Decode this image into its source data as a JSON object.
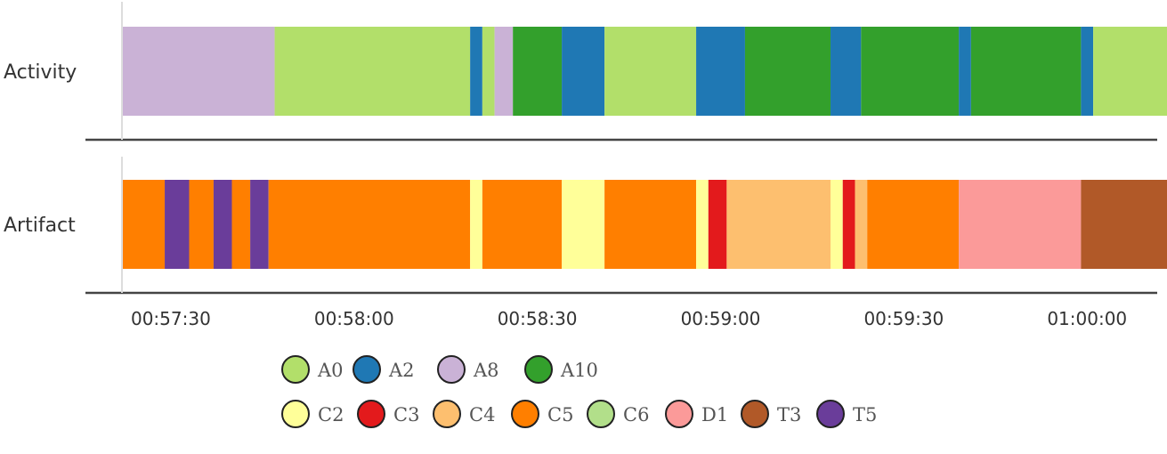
{
  "chart_data": {
    "type": "timeline",
    "x_axis": {
      "unit": "time",
      "range": [
        "00:57:22",
        "01:00:09"
      ],
      "ticks": [
        "00:57:30",
        "00:58:00",
        "00:58:30",
        "00:59:00",
        "00:59:30",
        "01:00:00"
      ]
    },
    "rows": [
      {
        "label": "Activity",
        "segments": [
          {
            "start": "00:57:22.0",
            "end": "00:57:47.0",
            "category": "A8"
          },
          {
            "start": "00:57:47.0",
            "end": "00:58:19.0",
            "category": "A0"
          },
          {
            "start": "00:58:19.0",
            "end": "00:58:21.0",
            "category": "A2"
          },
          {
            "start": "00:58:21.0",
            "end": "00:58:23.0",
            "category": "A0"
          },
          {
            "start": "00:58:23.0",
            "end": "00:58:26.0",
            "category": "A8"
          },
          {
            "start": "00:58:26.0",
            "end": "00:58:34.0",
            "category": "A10"
          },
          {
            "start": "00:58:34.0",
            "end": "00:58:41.0",
            "category": "A2"
          },
          {
            "start": "00:58:41.0",
            "end": "00:58:56.0",
            "category": "A0"
          },
          {
            "start": "00:58:56.0",
            "end": "00:59:04.0",
            "category": "A2"
          },
          {
            "start": "00:59:04.0",
            "end": "00:59:18.0",
            "category": "A10"
          },
          {
            "start": "00:59:18.0",
            "end": "00:59:23.0",
            "category": "A2"
          },
          {
            "start": "00:59:23.0",
            "end": "00:59:39.0",
            "category": "A10"
          },
          {
            "start": "00:59:39.0",
            "end": "00:59:41.0",
            "category": "A2"
          },
          {
            "start": "00:59:41.0",
            "end": "00:59:59.0",
            "category": "A10"
          },
          {
            "start": "00:59:59.0",
            "end": "01:00:01.0",
            "category": "A2"
          },
          {
            "start": "01:00:01.0",
            "end": "01:00:15.0",
            "category": "A0"
          },
          {
            "start": "01:00:15.0",
            "end": "01:00:17.0",
            "category": "A2"
          }
        ]
      },
      {
        "label": "Artifact",
        "segments": [
          {
            "start": "00:57:22.0",
            "end": "00:57:29.0",
            "category": "C5"
          },
          {
            "start": "00:57:29.0",
            "end": "00:57:33.0",
            "category": "T5"
          },
          {
            "start": "00:57:33.0",
            "end": "00:57:37.0",
            "category": "C5"
          },
          {
            "start": "00:57:37.0",
            "end": "00:57:40.0",
            "category": "T5"
          },
          {
            "start": "00:57:40.0",
            "end": "00:57:43.0",
            "category": "C5"
          },
          {
            "start": "00:57:43.0",
            "end": "00:57:46.0",
            "category": "T5"
          },
          {
            "start": "00:57:46.0",
            "end": "00:58:19.0",
            "category": "C5"
          },
          {
            "start": "00:58:19.0",
            "end": "00:58:21.0",
            "category": "C2"
          },
          {
            "start": "00:58:21.0",
            "end": "00:58:34.0",
            "category": "C5"
          },
          {
            "start": "00:58:34.0",
            "end": "00:58:41.0",
            "category": "C2"
          },
          {
            "start": "00:58:41.0",
            "end": "00:58:56.0",
            "category": "C5"
          },
          {
            "start": "00:58:56.0",
            "end": "00:58:58.0",
            "category": "C2"
          },
          {
            "start": "00:58:58.0",
            "end": "00:59:01.0",
            "category": "C3"
          },
          {
            "start": "00:59:01.0",
            "end": "00:59:18.0",
            "category": "C4"
          },
          {
            "start": "00:59:18.0",
            "end": "00:59:20.0",
            "category": "C2"
          },
          {
            "start": "00:59:20.0",
            "end": "00:59:22.0",
            "category": "C3"
          },
          {
            "start": "00:59:22.0",
            "end": "00:59:24.0",
            "category": "C4"
          },
          {
            "start": "00:59:24.0",
            "end": "00:59:39.0",
            "category": "C5"
          },
          {
            "start": "00:59:39.0",
            "end": "00:59:59.0",
            "category": "D1"
          },
          {
            "start": "00:59:59.0",
            "end": "01:00:15.0",
            "category": "T3"
          },
          {
            "start": "01:00:15.0",
            "end": "01:00:17.0",
            "category": "C6"
          }
        ]
      }
    ],
    "legend": {
      "placement": "bottom",
      "rows": [
        [
          {
            "name": "A0",
            "color": "#b2df6a"
          },
          {
            "name": "A2",
            "color": "#1f78b4"
          },
          {
            "name": "A8",
            "color": "#cab2d6"
          },
          {
            "name": "A10",
            "color": "#33a02c"
          }
        ],
        [
          {
            "name": "C2",
            "color": "#ffff99"
          },
          {
            "name": "C3",
            "color": "#e31a1c"
          },
          {
            "name": "C4",
            "color": "#fdbf6f"
          },
          {
            "name": "C5",
            "color": "#ff7f00"
          },
          {
            "name": "C6",
            "color": "#b2df8a"
          },
          {
            "name": "D1",
            "color": "#fb9a99"
          },
          {
            "name": "T3",
            "color": "#b15928"
          },
          {
            "name": "T5",
            "color": "#6a3d9a"
          }
        ]
      ]
    },
    "colors": {
      "A0": "#b2df6a",
      "A2": "#1f78b4",
      "A8": "#cab2d6",
      "A10": "#33a02c",
      "C2": "#ffff99",
      "C3": "#e31a1c",
      "C4": "#fdbf6f",
      "C5": "#ff7f00",
      "C6": "#b2df8a",
      "D1": "#fb9a99",
      "T3": "#b15928",
      "T5": "#6a3d9a"
    }
  }
}
